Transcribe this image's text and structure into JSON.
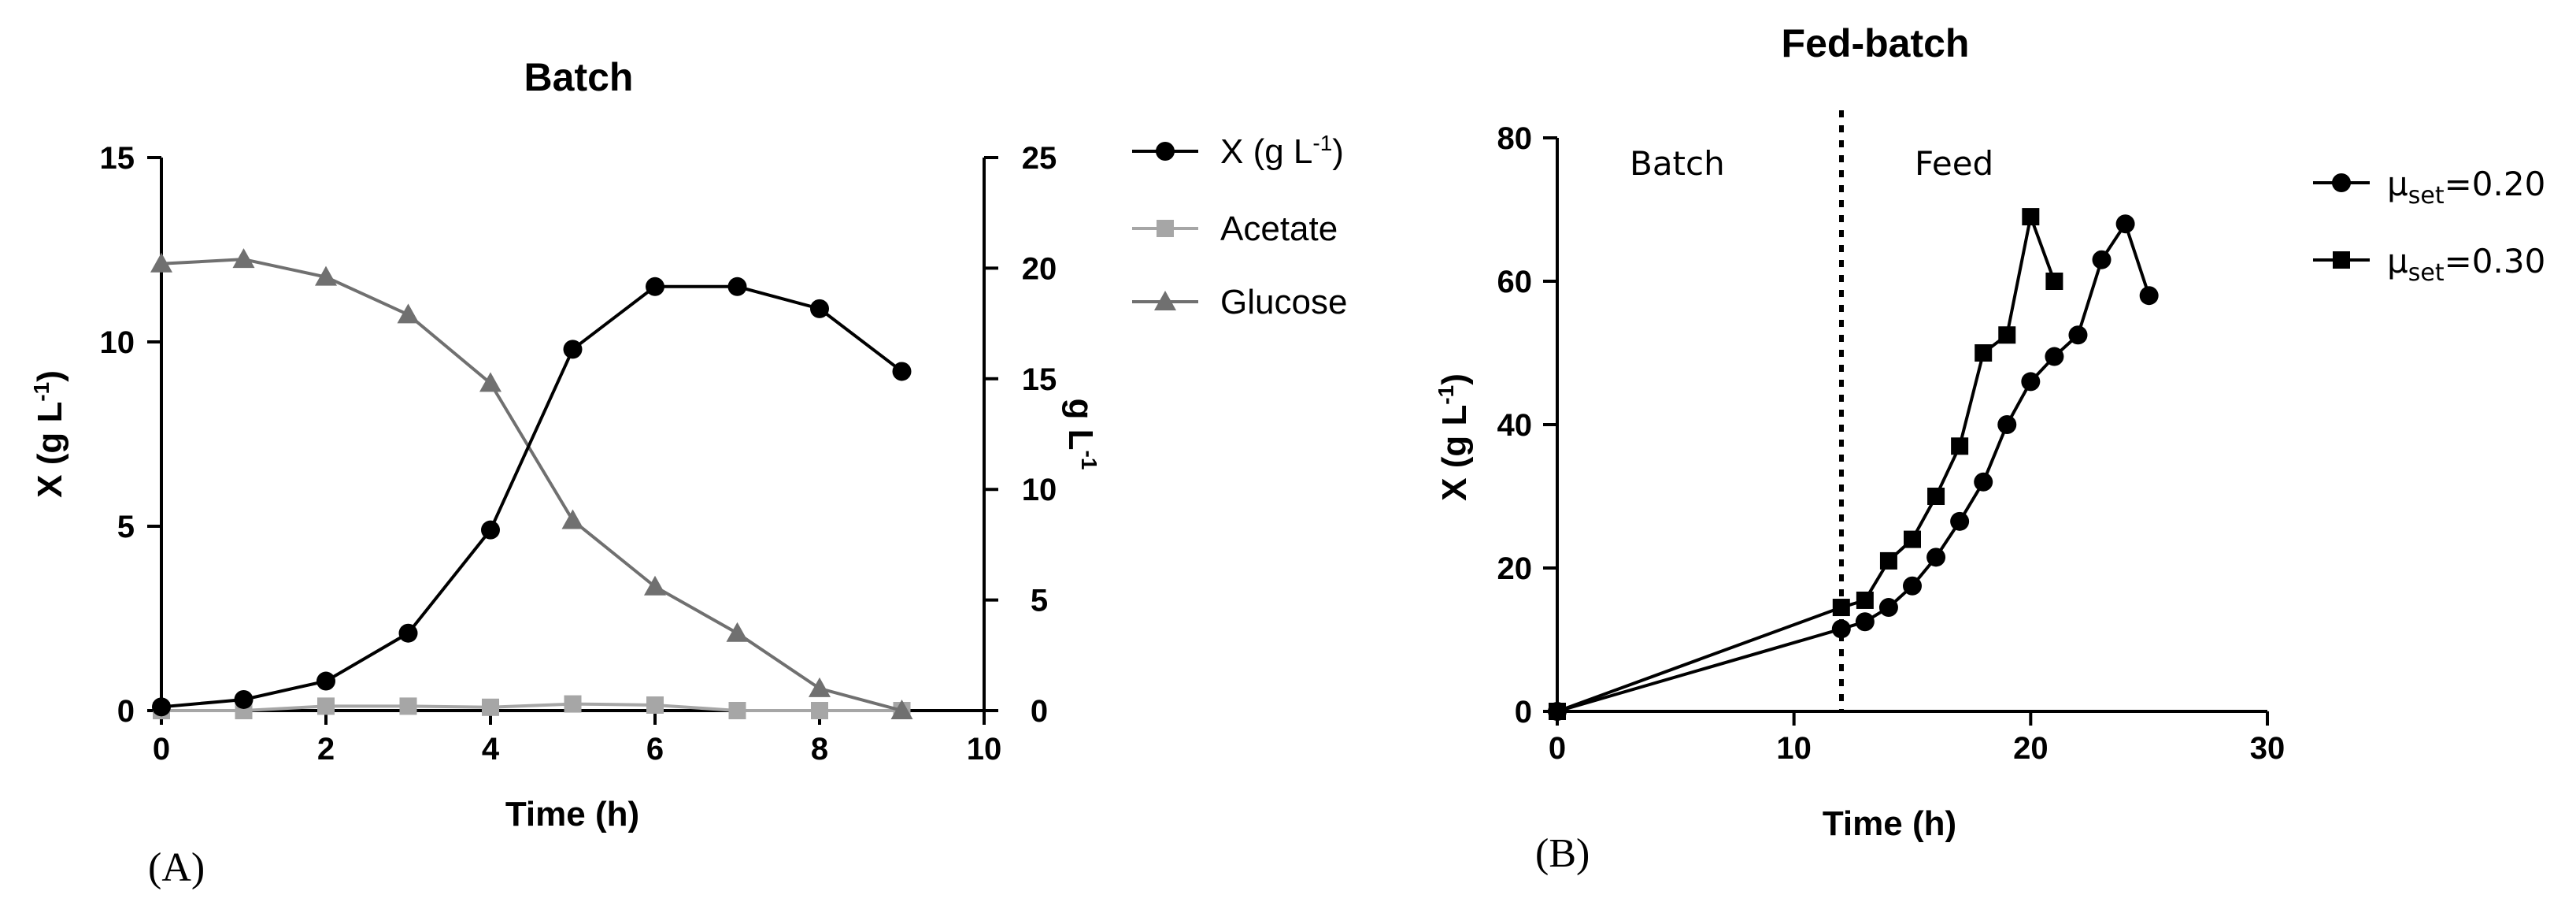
{
  "chart_data": [
    {
      "type": "line",
      "panel_label": "(A)",
      "title": "Batch",
      "xlabel": "Time (h)",
      "ylabel_main": "X (g L",
      "ylabel_sup": "-1",
      "ylabel_close": ")",
      "y2label_main": "g L",
      "y2label_sup": "-1",
      "xlim": [
        0,
        10
      ],
      "ylim": [
        0,
        15
      ],
      "y2lim": [
        0,
        25
      ],
      "xticks": [
        "0",
        "2",
        "4",
        "6",
        "8",
        "10"
      ],
      "yticks": [
        "0",
        "5",
        "10",
        "15"
      ],
      "y2ticks": [
        "0",
        "5",
        "10",
        "15",
        "20",
        "25"
      ],
      "series": [
        {
          "name": "X (g L",
          "name_sup": "-1",
          "name_close": ")",
          "axis": "left",
          "color": "#000000",
          "marker": "circle",
          "x": [
            0,
            1,
            2,
            3,
            4,
            5,
            6,
            7,
            8,
            9
          ],
          "y": [
            0.1,
            0.3,
            0.8,
            2.1,
            4.9,
            9.8,
            11.5,
            11.5,
            10.9,
            9.2
          ]
        },
        {
          "name": "Acetate",
          "axis": "right",
          "color": "#a6a6a6",
          "marker": "square",
          "x": [
            0,
            1,
            2,
            3,
            4,
            5,
            6,
            7,
            8,
            9
          ],
          "y": [
            0,
            0,
            0.2,
            0.2,
            0.15,
            0.3,
            0.25,
            0,
            0,
            0
          ]
        },
        {
          "name": "Glucose",
          "axis": "right",
          "color": "#707070",
          "marker": "triangle",
          "x": [
            0,
            1,
            2,
            3,
            4,
            5,
            6,
            7,
            8,
            9
          ],
          "y": [
            20.2,
            20.4,
            19.6,
            17.9,
            14.8,
            8.6,
            5.6,
            3.5,
            1.0,
            0
          ]
        }
      ]
    },
    {
      "type": "line",
      "panel_label": "(B)",
      "title": "Fed-batch",
      "xlabel": "Time (h)",
      "ylabel_main": "X (g L",
      "ylabel_sup": "-1",
      "ylabel_close": ")",
      "xlim": [
        0,
        30
      ],
      "ylim": [
        0,
        80
      ],
      "xticks": [
        "0",
        "10",
        "20",
        "30"
      ],
      "yticks": [
        "0",
        "20",
        "40",
        "60",
        "80"
      ],
      "vline_x": 12,
      "annotations": [
        "Batch",
        "Feed"
      ],
      "series": [
        {
          "name_mu": "μ",
          "name_sub": "set",
          "name_rest": "=0.20",
          "color": "#000000",
          "marker": "circle",
          "x": [
            0,
            12,
            13,
            14,
            15,
            16,
            17,
            18,
            19,
            20,
            21,
            22,
            23,
            24,
            25
          ],
          "y": [
            0,
            11.5,
            12.5,
            14.5,
            17.5,
            21.5,
            26.5,
            32,
            40,
            46,
            49.5,
            52.5,
            63,
            68,
            58
          ]
        },
        {
          "name_mu": "μ",
          "name_sub": "set",
          "name_rest": "=0.30",
          "color": "#000000",
          "marker": "square",
          "x": [
            0,
            12,
            13,
            14,
            15,
            16,
            17,
            18,
            19,
            20,
            21
          ],
          "y": [
            0,
            14.5,
            15.5,
            21,
            24,
            30,
            37,
            50,
            52.5,
            69,
            60
          ]
        }
      ]
    }
  ]
}
